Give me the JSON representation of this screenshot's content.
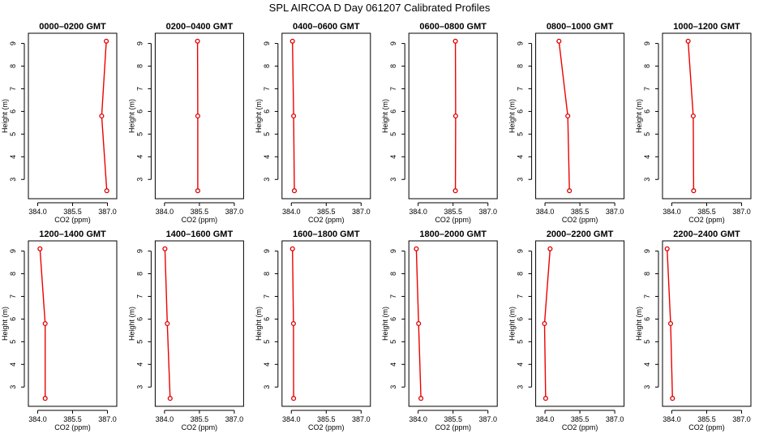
{
  "figure_title": "SPL AIRCOA D  Day 061207  Calibrated Profiles",
  "colors": {
    "profile_line": "#ee0000",
    "profile_marker": "#dd0000",
    "frame": "#000000"
  },
  "chart_data": [
    {
      "type": "line",
      "title": "0000–0200 GMT",
      "xlabel": "CO2 (ppm)",
      "ylabel": "Height (m)",
      "xlim": [
        383.6,
        387.4
      ],
      "ylim": [
        2.15,
        9.45
      ],
      "xticks": [
        "384.0",
        "385.5",
        "387.0"
      ],
      "yticks": [
        "3",
        "4",
        "5",
        "6",
        "7",
        "8",
        "9"
      ],
      "x": [
        386.95,
        386.75,
        386.97
      ],
      "y": [
        9.1,
        5.8,
        2.5
      ]
    },
    {
      "type": "line",
      "title": "0200–0400 GMT",
      "xlabel": "CO2 (ppm)",
      "ylabel": "Height (m)",
      "xlim": [
        383.6,
        387.4
      ],
      "ylim": [
        2.15,
        9.45
      ],
      "xticks": [
        "384.0",
        "385.5",
        "387.0"
      ],
      "yticks": [
        "3",
        "4",
        "5",
        "6",
        "7",
        "8",
        "9"
      ],
      "x": [
        385.42,
        385.43,
        385.43
      ],
      "y": [
        9.1,
        5.8,
        2.5
      ]
    },
    {
      "type": "line",
      "title": "0400–0600 GMT",
      "xlabel": "CO2 (ppm)",
      "ylabel": "Height (m)",
      "xlim": [
        383.6,
        387.4
      ],
      "ylim": [
        2.15,
        9.45
      ],
      "xticks": [
        "384.0",
        "385.5",
        "387.0"
      ],
      "yticks": [
        "3",
        "4",
        "5",
        "6",
        "7",
        "8",
        "9"
      ],
      "x": [
        384.05,
        384.1,
        384.13
      ],
      "y": [
        9.1,
        5.8,
        2.5
      ]
    },
    {
      "type": "line",
      "title": "0600–0800 GMT",
      "xlabel": "CO2 (ppm)",
      "ylabel": "Height (m)",
      "xlim": [
        383.6,
        387.4
      ],
      "ylim": [
        2.15,
        9.45
      ],
      "xticks": [
        "384.0",
        "385.5",
        "387.0"
      ],
      "yticks": [
        "3",
        "4",
        "5",
        "6",
        "7",
        "8",
        "9"
      ],
      "x": [
        385.6,
        385.61,
        385.6
      ],
      "y": [
        9.1,
        5.8,
        2.5
      ]
    },
    {
      "type": "line",
      "title": "0800–1000 GMT",
      "xlabel": "CO2 (ppm)",
      "ylabel": "Height (m)",
      "xlim": [
        383.6,
        387.4
      ],
      "ylim": [
        2.15,
        9.45
      ],
      "xticks": [
        "384.0",
        "385.5",
        "387.0"
      ],
      "yticks": [
        "3",
        "4",
        "5",
        "6",
        "7",
        "8",
        "9"
      ],
      "x": [
        384.6,
        384.98,
        385.05
      ],
      "y": [
        9.1,
        5.8,
        2.5
      ]
    },
    {
      "type": "line",
      "title": "1000–1200 GMT",
      "xlabel": "CO2 (ppm)",
      "ylabel": "Height (m)",
      "xlim": [
        383.6,
        387.4
      ],
      "ylim": [
        2.15,
        9.45
      ],
      "xticks": [
        "384.0",
        "385.5",
        "387.0"
      ],
      "yticks": [
        "3",
        "4",
        "5",
        "6",
        "7",
        "8",
        "9"
      ],
      "x": [
        384.7,
        384.92,
        384.94
      ],
      "y": [
        9.1,
        5.8,
        2.5
      ]
    },
    {
      "type": "line",
      "title": "1200–1400 GMT",
      "xlabel": "CO2 (ppm)",
      "ylabel": "Height (m)",
      "xlim": [
        383.6,
        387.4
      ],
      "ylim": [
        2.15,
        9.45
      ],
      "xticks": [
        "384.0",
        "385.5",
        "387.0"
      ],
      "yticks": [
        "3",
        "4",
        "5",
        "6",
        "7",
        "8",
        "9"
      ],
      "x": [
        384.1,
        384.32,
        384.32
      ],
      "y": [
        9.1,
        5.8,
        2.5
      ]
    },
    {
      "type": "line",
      "title": "1400–1600 GMT",
      "xlabel": "CO2 (ppm)",
      "ylabel": "Height (m)",
      "xlim": [
        383.6,
        387.4
      ],
      "ylim": [
        2.15,
        9.45
      ],
      "xticks": [
        "384.0",
        "385.5",
        "387.0"
      ],
      "yticks": [
        "3",
        "4",
        "5",
        "6",
        "7",
        "8",
        "9"
      ],
      "x": [
        384.02,
        384.12,
        384.24
      ],
      "y": [
        9.1,
        5.8,
        2.5
      ]
    },
    {
      "type": "line",
      "title": "1600–1800 GMT",
      "xlabel": "CO2 (ppm)",
      "ylabel": "Height (m)",
      "xlim": [
        383.6,
        387.4
      ],
      "ylim": [
        2.15,
        9.45
      ],
      "xticks": [
        "384.0",
        "385.5",
        "387.0"
      ],
      "yticks": [
        "3",
        "4",
        "5",
        "6",
        "7",
        "8",
        "9"
      ],
      "x": [
        384.05,
        384.09,
        384.1
      ],
      "y": [
        9.1,
        5.8,
        2.5
      ]
    },
    {
      "type": "line",
      "title": "1800–2000 GMT",
      "xlabel": "CO2 (ppm)",
      "ylabel": "Height (m)",
      "xlim": [
        383.6,
        387.4
      ],
      "ylim": [
        2.15,
        9.45
      ],
      "xticks": [
        "384.0",
        "385.5",
        "387.0"
      ],
      "yticks": [
        "3",
        "4",
        "5",
        "6",
        "7",
        "8",
        "9"
      ],
      "x": [
        383.92,
        384.02,
        384.12
      ],
      "y": [
        9.1,
        5.8,
        2.5
      ]
    },
    {
      "type": "line",
      "title": "2000–2200 GMT",
      "xlabel": "CO2 (ppm)",
      "ylabel": "Height (m)",
      "xlim": [
        383.6,
        387.4
      ],
      "ylim": [
        2.15,
        9.45
      ],
      "xticks": [
        "384.0",
        "385.5",
        "387.0"
      ],
      "yticks": [
        "3",
        "4",
        "5",
        "6",
        "7",
        "8",
        "9"
      ],
      "x": [
        384.22,
        383.98,
        384.03
      ],
      "y": [
        9.1,
        5.8,
        2.5
      ]
    },
    {
      "type": "line",
      "title": "2200–2400 GMT",
      "xlabel": "CO2 (ppm)",
      "ylabel": "Height (m)",
      "xlim": [
        383.6,
        387.4
      ],
      "ylim": [
        2.15,
        9.45
      ],
      "xticks": [
        "384.0",
        "385.5",
        "387.0"
      ],
      "yticks": [
        "3",
        "4",
        "5",
        "6",
        "7",
        "8",
        "9"
      ],
      "x": [
        383.8,
        383.95,
        384.03
      ],
      "y": [
        9.1,
        5.8,
        2.5
      ]
    }
  ]
}
